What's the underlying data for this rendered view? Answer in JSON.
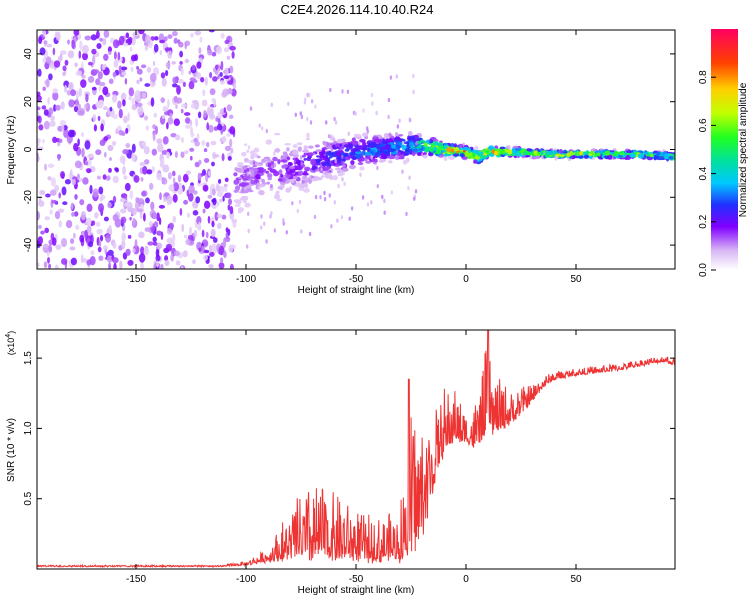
{
  "title": "C2E4.2026.114.10.40.R24",
  "spectrogram": {
    "type": "heatmap",
    "xlabel": "Height of straight line (km)",
    "ylabel": "Frequency (Hz)",
    "xlim": [
      -195,
      95
    ],
    "ylim": [
      -50,
      50
    ],
    "xticks": [
      -150,
      -100,
      -50,
      0,
      50
    ],
    "xtick_labels": [
      "-150",
      "-100",
      "-50",
      "0",
      "50"
    ],
    "yticks": [
      -40,
      -20,
      0,
      20,
      40
    ],
    "ytick_labels": [
      "-40",
      "-20",
      "0",
      "20",
      "40"
    ],
    "noise_region_km": [
      -195,
      -105
    ],
    "signal_track": {
      "x": [
        -105,
        -90,
        -75,
        -60,
        -50,
        -40,
        -30,
        -20,
        -10,
        0,
        5,
        10,
        20,
        40,
        60,
        80,
        95
      ],
      "center_hz": [
        -13,
        -9,
        -7,
        -3,
        -1,
        0,
        1,
        2,
        0,
        -1,
        -3,
        -1,
        -1,
        -2,
        -2,
        -2,
        -3
      ],
      "spread_hz": [
        8,
        8,
        7,
        6,
        5,
        4,
        4,
        3,
        2,
        1.5,
        2,
        1.5,
        1.2,
        1,
        1,
        1,
        1
      ],
      "amplitude": [
        0.15,
        0.18,
        0.22,
        0.28,
        0.33,
        0.36,
        0.4,
        0.55,
        0.75,
        0.9,
        0.7,
        0.85,
        0.75,
        0.7,
        0.72,
        0.72,
        0.6
      ]
    }
  },
  "colorbar": {
    "label": "Normalized spectral amplitude",
    "range": [
      0,
      1
    ],
    "ticks": [
      0.0,
      0.2,
      0.4,
      0.6,
      0.8
    ],
    "tick_labels": [
      "0.0",
      "0.2",
      "0.4",
      "0.6",
      "0.8"
    ]
  },
  "snr": {
    "type": "line",
    "xlabel": "Height of straight line (km)",
    "ylabel": "SNR (10 * v/v)",
    "scale_label": "(x10",
    "scale_exponent": "4",
    "scale_close": ")",
    "xlim": [
      -195,
      95
    ],
    "ylim": [
      0,
      1.7
    ],
    "xticks": [
      -150,
      -100,
      -50,
      0,
      50
    ],
    "xtick_labels": [
      "-150",
      "-100",
      "-50",
      "0",
      "50"
    ],
    "yticks": [
      0.5,
      1.0,
      1.5
    ],
    "ytick_labels": [
      "0.5",
      "1.0",
      "1.5"
    ],
    "color": "#ee3333",
    "envelope": {
      "x": [
        -195,
        -110,
        -100,
        -90,
        -80,
        -70,
        -60,
        -50,
        -40,
        -30,
        -25,
        -20,
        -15,
        -10,
        -5,
        0,
        5,
        8,
        10,
        12,
        15,
        20,
        30,
        35,
        40,
        50,
        60,
        70,
        80,
        90,
        95
      ],
      "base": [
        0.02,
        0.02,
        0.03,
        0.06,
        0.1,
        0.12,
        0.12,
        0.1,
        0.08,
        0.1,
        0.2,
        0.3,
        0.6,
        0.88,
        0.95,
        0.92,
        0.88,
        1.0,
        1.05,
        1.0,
        1.02,
        1.05,
        1.2,
        1.3,
        1.35,
        1.38,
        1.4,
        1.42,
        1.45,
        1.48,
        1.45
      ],
      "spike": [
        0.01,
        0.01,
        0.03,
        0.1,
        0.35,
        0.5,
        0.45,
        0.35,
        0.3,
        0.4,
        1.0,
        0.8,
        0.55,
        0.45,
        0.35,
        0.2,
        0.35,
        0.5,
        0.6,
        0.4,
        0.35,
        0.25,
        0.12,
        0.08,
        0.06,
        0.05,
        0.05,
        0.05,
        0.05,
        0.05,
        0.05
      ]
    }
  }
}
